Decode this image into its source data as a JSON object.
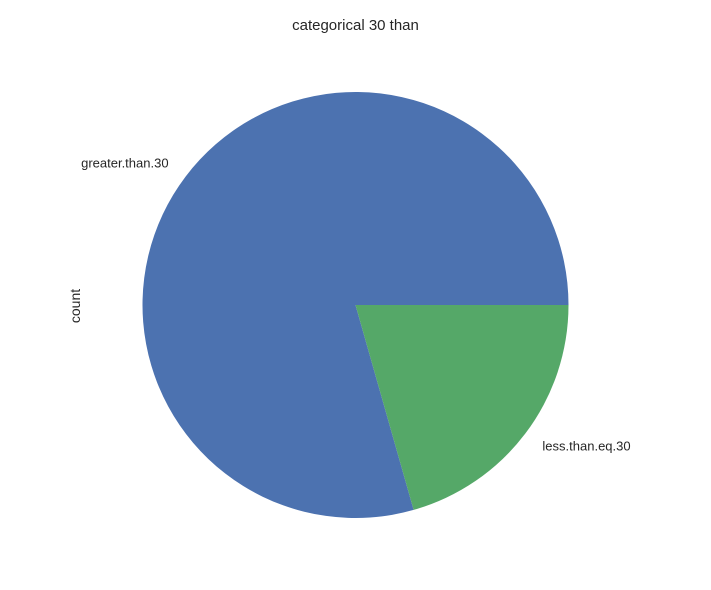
{
  "chart_data": {
    "type": "pie",
    "title": "categorical 30 than",
    "ylabel": "count",
    "categories": [
      "greater.than.30",
      "less.than.eq.30"
    ],
    "values": [
      79.4,
      20.6
    ],
    "colors": [
      "#4C72B0",
      "#55A868"
    ],
    "start_angle_deg": 0,
    "direction": "counterclockwise",
    "legend": "none",
    "grid": false
  }
}
